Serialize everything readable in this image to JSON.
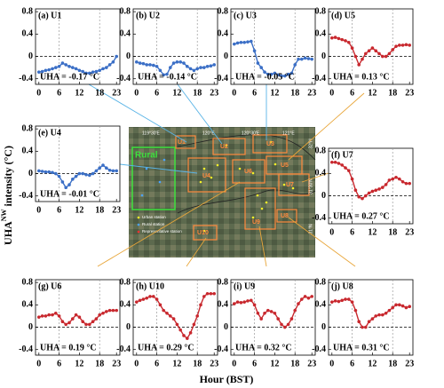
{
  "chart_data": [
    {
      "type": "line",
      "title": "(a) U1",
      "annotation": "UHA = -0.17 °C",
      "color": "#3b6fc6",
      "x": [
        0,
        1,
        2,
        3,
        4,
        5,
        6,
        7,
        8,
        9,
        10,
        11,
        12,
        13,
        14,
        15,
        16,
        17,
        18,
        19,
        20,
        21,
        22,
        23
      ],
      "values": [
        -0.28,
        -0.27,
        -0.25,
        -0.24,
        -0.22,
        -0.2,
        -0.18,
        -0.12,
        -0.15,
        -0.18,
        -0.2,
        -0.22,
        -0.25,
        -0.27,
        -0.3,
        -0.3,
        -0.28,
        -0.27,
        -0.25,
        -0.22,
        -0.2,
        -0.15,
        -0.1,
        0.0
      ],
      "xlim": [
        -1,
        24
      ],
      "ylim": [
        -0.5,
        0.85
      ],
      "xticks": [
        0,
        6,
        12,
        18,
        23
      ],
      "yticks": [
        -0.4,
        0,
        0.4,
        0.8
      ],
      "vlines": [
        6,
        18
      ],
      "hline": 0
    },
    {
      "type": "line",
      "title": "(b) U2",
      "annotation": "UHA = -0.14 °C",
      "color": "#3b6fc6",
      "x": [
        0,
        1,
        2,
        3,
        4,
        5,
        6,
        7,
        8,
        9,
        10,
        11,
        12,
        13,
        14,
        15,
        16,
        17,
        18,
        19,
        20,
        21,
        22,
        23
      ],
      "values": [
        -0.1,
        -0.12,
        -0.13,
        -0.15,
        -0.15,
        -0.16,
        -0.18,
        -0.25,
        -0.33,
        -0.32,
        -0.2,
        -0.12,
        -0.1,
        -0.1,
        -0.12,
        -0.18,
        -0.22,
        -0.25,
        -0.22,
        -0.2,
        -0.2,
        -0.18,
        -0.17,
        -0.15
      ],
      "xlim": [
        -1,
        24
      ],
      "ylim": [
        -0.5,
        0.85
      ],
      "xticks": [
        0,
        6,
        12,
        18,
        23
      ],
      "yticks": [
        -0.4,
        0,
        0.4,
        0.8
      ],
      "vlines": [
        6,
        18
      ],
      "hline": 0
    },
    {
      "type": "line",
      "title": "(c) U3",
      "annotation": "UHA = -0.05 °C",
      "color": "#3b6fc6",
      "x": [
        0,
        1,
        2,
        3,
        4,
        5,
        6,
        7,
        8,
        9,
        10,
        11,
        12,
        13,
        14,
        15,
        16,
        17,
        18,
        19,
        20,
        21,
        22,
        23
      ],
      "values": [
        0.22,
        0.24,
        0.25,
        0.25,
        0.26,
        0.27,
        0.1,
        -0.12,
        -0.2,
        -0.28,
        -0.32,
        -0.32,
        -0.3,
        -0.33,
        -0.35,
        -0.35,
        -0.32,
        -0.3,
        -0.15,
        -0.05,
        -0.05,
        -0.03,
        -0.04,
        -0.05
      ],
      "xlim": [
        -1,
        24
      ],
      "ylim": [
        -0.5,
        0.85
      ],
      "xticks": [
        0,
        6,
        12,
        18,
        23
      ],
      "yticks": [
        -0.4,
        0,
        0.4,
        0.8
      ],
      "vlines": [
        6,
        18
      ],
      "hline": 0
    },
    {
      "type": "line",
      "title": "(d) U5",
      "annotation": "UHA = 0.13 °C",
      "color": "#c8282e",
      "x": [
        0,
        1,
        2,
        3,
        4,
        5,
        6,
        7,
        8,
        9,
        10,
        11,
        12,
        13,
        14,
        15,
        16,
        17,
        18,
        19,
        20,
        21,
        22,
        23
      ],
      "values": [
        0.33,
        0.34,
        0.32,
        0.3,
        0.28,
        0.25,
        0.15,
        0.0,
        -0.15,
        -0.05,
        0.05,
        0.1,
        0.15,
        0.1,
        0.05,
        0.0,
        0.0,
        0.05,
        0.12,
        0.18,
        0.2,
        0.2,
        0.21,
        0.2
      ],
      "xlim": [
        -1,
        24
      ],
      "ylim": [
        -0.5,
        0.85
      ],
      "xticks": [
        0,
        6,
        12,
        18,
        23
      ],
      "yticks": [
        -0.4,
        0,
        0.4,
        0.8
      ],
      "vlines": [
        6,
        18
      ],
      "hline": 0
    },
    {
      "type": "line",
      "title": "(e) U4",
      "annotation": "UHA = -0.01 °C",
      "color": "#3b6fc6",
      "x": [
        0,
        1,
        2,
        3,
        4,
        5,
        6,
        7,
        8,
        9,
        10,
        11,
        12,
        13,
        14,
        15,
        16,
        17,
        18,
        19,
        20,
        21,
        22,
        23
      ],
      "values": [
        0.05,
        0.04,
        0.03,
        0.03,
        0.02,
        0.0,
        -0.05,
        -0.15,
        -0.25,
        -0.2,
        -0.1,
        -0.05,
        0.0,
        0.0,
        -0.02,
        -0.03,
        0.0,
        0.05,
        0.1,
        0.15,
        0.1,
        0.06,
        0.05,
        0.05
      ],
      "xlim": [
        -1,
        24
      ],
      "ylim": [
        -0.5,
        0.85
      ],
      "xticks": [
        0,
        6,
        12,
        18,
        23
      ],
      "yticks": [
        -0.4,
        0,
        0.4,
        0.8
      ],
      "vlines": [
        6,
        18
      ],
      "hline": 0
    },
    {
      "type": "line",
      "title": "(f) U7",
      "annotation": "UHA = 0.27 °C",
      "color": "#c8282e",
      "x": [
        0,
        1,
        2,
        3,
        4,
        5,
        6,
        7,
        8,
        9,
        10,
        11,
        12,
        13,
        14,
        15,
        16,
        17,
        18,
        19,
        20,
        21,
        22,
        23
      ],
      "values": [
        0.6,
        0.6,
        0.58,
        0.55,
        0.5,
        0.45,
        0.3,
        0.1,
        -0.02,
        -0.05,
        0.0,
        0.05,
        0.08,
        0.1,
        0.12,
        0.15,
        0.2,
        0.28,
        0.3,
        0.33,
        0.3,
        0.25,
        0.22,
        0.22
      ],
      "xlim": [
        -1,
        24
      ],
      "ylim": [
        -0.5,
        0.85
      ],
      "xticks": [
        0,
        6,
        12,
        18,
        23
      ],
      "yticks": [
        -0.4,
        0,
        0.4,
        0.8
      ],
      "vlines": [
        6,
        18
      ],
      "hline": 0
    },
    {
      "type": "line",
      "title": "(g) U6",
      "annotation": "UHA = 0.19 °C",
      "color": "#c8282e",
      "x": [
        0,
        1,
        2,
        3,
        4,
        5,
        6,
        7,
        8,
        9,
        10,
        11,
        12,
        13,
        14,
        15,
        16,
        17,
        18,
        19,
        20,
        21,
        22,
        23
      ],
      "values": [
        0.18,
        0.2,
        0.2,
        0.22,
        0.22,
        0.25,
        0.2,
        0.1,
        0.05,
        0.08,
        0.15,
        0.22,
        0.18,
        0.1,
        0.05,
        0.05,
        0.1,
        0.15,
        0.22,
        0.25,
        0.28,
        0.3,
        0.3,
        0.3
      ],
      "xlim": [
        -1,
        24
      ],
      "ylim": [
        -0.5,
        0.85
      ],
      "xticks": [
        0,
        6,
        12,
        18,
        23
      ],
      "yticks": [
        -0.4,
        0,
        0.4,
        0.8
      ],
      "vlines": [
        6,
        18
      ],
      "hline": 0
    },
    {
      "type": "line",
      "title": "(h) U10",
      "annotation": "UHA = 0.29 °C",
      "color": "#c8282e",
      "x": [
        0,
        1,
        2,
        3,
        4,
        5,
        6,
        7,
        8,
        9,
        10,
        11,
        12,
        13,
        14,
        15,
        16,
        17,
        18,
        19,
        20,
        21,
        22,
        23
      ],
      "values": [
        0.45,
        0.48,
        0.5,
        0.52,
        0.55,
        0.55,
        0.5,
        0.4,
        0.3,
        0.25,
        0.2,
        0.15,
        0.05,
        -0.05,
        -0.15,
        -0.2,
        -0.1,
        0.05,
        0.2,
        0.4,
        0.55,
        0.6,
        0.6,
        0.6
      ],
      "xlim": [
        -1,
        24
      ],
      "ylim": [
        -0.5,
        0.85
      ],
      "xticks": [
        0,
        6,
        12,
        18,
        23
      ],
      "yticks": [
        -0.4,
        0,
        0.4,
        0.8
      ],
      "vlines": [
        6,
        18
      ],
      "hline": 0
    },
    {
      "type": "line",
      "title": "(i) U9",
      "annotation": "UHA = 0.32 °C",
      "color": "#c8282e",
      "x": [
        0,
        1,
        2,
        3,
        4,
        5,
        6,
        7,
        8,
        9,
        10,
        11,
        12,
        13,
        14,
        15,
        16,
        17,
        18,
        19,
        20,
        21,
        22,
        23
      ],
      "values": [
        0.42,
        0.45,
        0.44,
        0.45,
        0.47,
        0.48,
        0.4,
        0.25,
        0.15,
        0.25,
        0.3,
        0.28,
        0.25,
        0.15,
        0.05,
        0.0,
        0.05,
        0.15,
        0.3,
        0.42,
        0.5,
        0.55,
        0.52,
        0.55
      ],
      "xlim": [
        -1,
        24
      ],
      "ylim": [
        -0.5,
        0.85
      ],
      "xticks": [
        0,
        6,
        12,
        18,
        23
      ],
      "yticks": [
        -0.4,
        0,
        0.4,
        0.8
      ],
      "vlines": [
        6,
        18
      ],
      "hline": 0
    },
    {
      "type": "line",
      "title": "(j) U8",
      "annotation": "UHA = 0.31 °C",
      "color": "#c8282e",
      "x": [
        0,
        1,
        2,
        3,
        4,
        5,
        6,
        7,
        8,
        9,
        10,
        11,
        12,
        13,
        14,
        15,
        16,
        17,
        18,
        19,
        20,
        21,
        22,
        23
      ],
      "values": [
        0.45,
        0.47,
        0.46,
        0.48,
        0.5,
        0.5,
        0.45,
        0.3,
        0.1,
        0.0,
        0.0,
        0.1,
        0.15,
        0.2,
        0.22,
        0.22,
        0.25,
        0.3,
        0.35,
        0.4,
        0.4,
        0.38,
        0.35,
        0.37
      ],
      "xlim": [
        -1,
        24
      ],
      "ylim": [
        -0.5,
        0.85
      ],
      "xticks": [
        0,
        6,
        12,
        18,
        23
      ],
      "yticks": [
        -0.4,
        0,
        0.4,
        0.8
      ],
      "vlines": [
        6,
        18
      ],
      "hline": 0
    }
  ],
  "axis_labels": {
    "y": [
      "UHA",
      "NW",
      " intensity (°C)"
    ],
    "x": "Hour (BST)"
  },
  "map": {
    "rural": "Rural",
    "urban": [
      "U1",
      "U2",
      "U3",
      "U4",
      "U5",
      "U6",
      "U7",
      "U8",
      "U9",
      "U10"
    ],
    "lon": [
      "119°30'E",
      "120°E",
      "120°30'E",
      "121°E"
    ],
    "lat": [
      "32°N",
      "31°30'N",
      "31°N"
    ],
    "legend": [
      "Urban station",
      "Rural station",
      "Representative station"
    ]
  }
}
